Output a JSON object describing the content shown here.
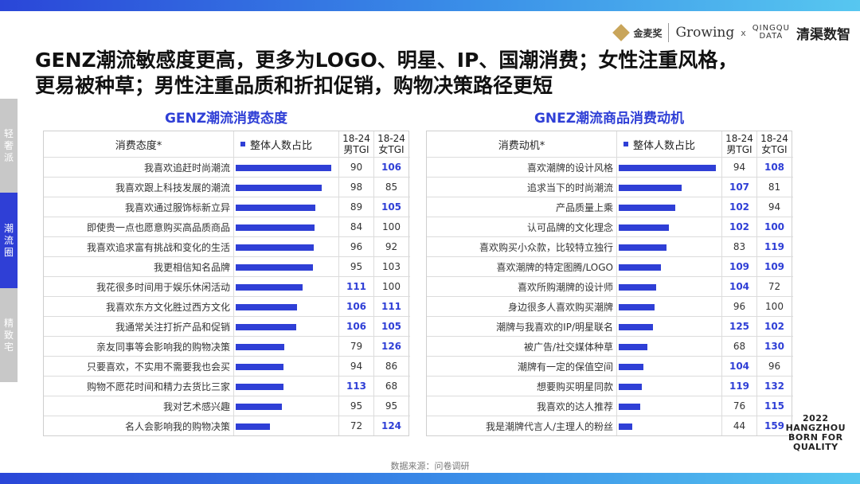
{
  "header": {
    "brand_jmj": "金麦奖",
    "brand_growing": "Growing",
    "brand_x": "x",
    "brand_qd_line1": "QINGQU",
    "brand_qd_line2": "DATA",
    "brand_qcn": "清渠数智"
  },
  "headline_line1": "GENZ潮流敏感度更高，更多为LOGO、明星、IP、国潮消费；女性注重风格，",
  "headline_line2": "更易被种草；男性注重品质和折扣促销，购物决策路径更短",
  "side_tabs": [
    {
      "label": "轻奢派",
      "active": false
    },
    {
      "label": "潮流圈",
      "active": true
    },
    {
      "label": "精致宅",
      "active": false
    }
  ],
  "source": "数据来源：问卷调研",
  "badge": [
    "2022",
    "HANGZHOU",
    "BORN FOR",
    "QUALITY"
  ],
  "colors": {
    "accent": "#2f3fd6",
    "highlight_text": "#2f3fd6"
  },
  "chart_data": [
    {
      "type": "bar",
      "title": "GENZ潮流消费态度",
      "label_header": "消费态度*",
      "legend": "整体人数占比",
      "col_male_header": [
        "18-24",
        "男TGI"
      ],
      "col_female_header": [
        "18-24",
        "女TGI"
      ],
      "categories": [
        "我喜欢追赶时尚潮流",
        "我喜欢跟上科技发展的潮流",
        "我喜欢通过服饰标新立异",
        "即使贵一点也愿意购买高品质商品",
        "我喜欢追求富有挑战和变化的生活",
        "我更相信知名品牌",
        "我花很多时间用于娱乐休闲活动",
        "我喜欢东方文化胜过西方文化",
        "我通常关注打折产品和促销",
        "亲友同事等会影响我的购物决策",
        "只要喜欢，不实用不需要我也会买",
        "购物不愿花时间和精力去货比三家",
        "我对艺术感兴趣",
        "名人会影响我的购物决策"
      ],
      "share_values": [
        0.97,
        0.87,
        0.81,
        0.8,
        0.79,
        0.78,
        0.68,
        0.62,
        0.61,
        0.49,
        0.48,
        0.48,
        0.47,
        0.35
      ],
      "male_tgi": [
        90,
        98,
        89,
        84,
        96,
        95,
        111,
        106,
        106,
        79,
        94,
        113,
        95,
        72
      ],
      "female_tgi": [
        106,
        85,
        105,
        100,
        92,
        103,
        100,
        111,
        105,
        126,
        86,
        68,
        95,
        124
      ],
      "male_highlight": [
        false,
        false,
        false,
        false,
        false,
        false,
        true,
        true,
        true,
        false,
        false,
        true,
        false,
        false
      ],
      "female_highlight": [
        true,
        false,
        true,
        false,
        false,
        false,
        false,
        true,
        true,
        true,
        false,
        false,
        false,
        true
      ]
    },
    {
      "type": "bar",
      "title": "GNEZ潮流商品消费动机",
      "label_header": "消费动机*",
      "legend": "整体人数占比",
      "col_male_header": [
        "18-24",
        "男TGI"
      ],
      "col_female_header": [
        "18-24",
        "女TGI"
      ],
      "categories": [
        "喜欢潮牌的设计风格",
        "追求当下的时尚潮流",
        "产品质量上乘",
        "认可品牌的文化理念",
        "喜欢购买小众款，比较特立独行",
        "喜欢潮牌的特定图腾/LOGO",
        "喜欢所购潮牌的设计师",
        "身边很多人喜欢购买潮牌",
        "潮牌与我喜欢的IP/明星联名",
        "被广告/社交媒体种草",
        "潮牌有一定的保值空间",
        "想要购买明星同款",
        "我喜欢的达人推荐",
        "我是潮牌代言人/主理人的粉丝"
      ],
      "share_values": [
        0.98,
        0.64,
        0.57,
        0.51,
        0.48,
        0.43,
        0.38,
        0.36,
        0.35,
        0.29,
        0.25,
        0.23,
        0.22,
        0.14
      ],
      "male_tgi": [
        94,
        107,
        102,
        102,
        83,
        109,
        104,
        96,
        125,
        68,
        104,
        119,
        76,
        44
      ],
      "female_tgi": [
        108,
        81,
        94,
        100,
        119,
        109,
        72,
        100,
        102,
        130,
        96,
        132,
        115,
        159
      ],
      "male_highlight": [
        false,
        true,
        true,
        true,
        false,
        true,
        true,
        false,
        true,
        false,
        true,
        true,
        false,
        false
      ],
      "female_highlight": [
        true,
        false,
        false,
        true,
        true,
        true,
        false,
        false,
        true,
        true,
        false,
        true,
        true,
        true
      ]
    }
  ]
}
